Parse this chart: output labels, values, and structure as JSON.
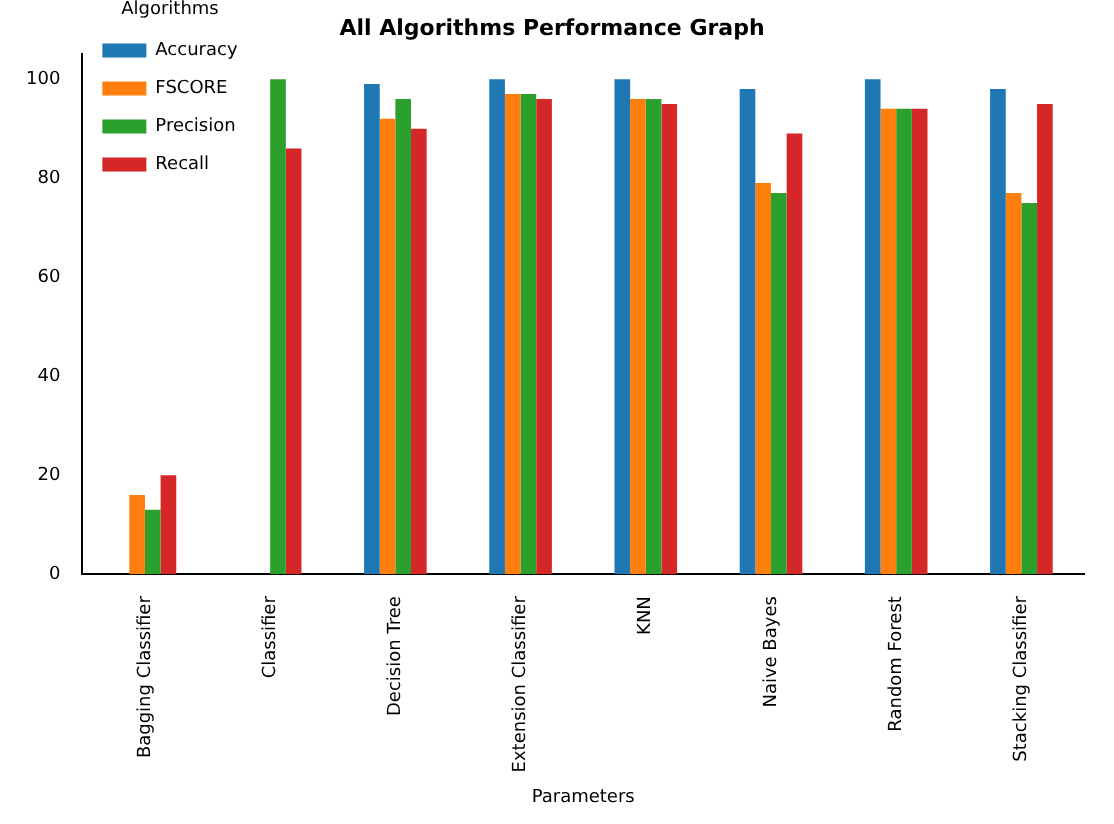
{
  "chart_data": {
    "type": "bar",
    "title": "All Algorithms Performance Graph",
    "xlabel": "Parameters",
    "legend_title": "Algorithms",
    "categories": [
      "Bagging Classifier",
      "Classifier",
      "Decision Tree",
      "Extension Classifier",
      "KNN",
      "Naive Bayes",
      "Random Forest",
      "Stacking Classifier"
    ],
    "series": [
      {
        "name": "Accuracy",
        "color": "#1f77b4",
        "values": [
          null,
          null,
          99,
          100,
          100,
          98,
          100,
          98
        ]
      },
      {
        "name": "FSCORE",
        "color": "#ff7f0e",
        "values": [
          16,
          null,
          92,
          97,
          96,
          79,
          94,
          77
        ]
      },
      {
        "name": "Precision",
        "color": "#2ca02c",
        "values": [
          13,
          100,
          96,
          97,
          96,
          77,
          94,
          75
        ]
      },
      {
        "name": "Recall",
        "color": "#d62728",
        "values": [
          20,
          86,
          90,
          96,
          95,
          89,
          94,
          95
        ]
      }
    ],
    "ylim": [
      0,
      105
    ],
    "yticks": [
      0,
      20,
      40,
      60,
      80,
      100
    ],
    "grid": false,
    "legend": "top left"
  }
}
